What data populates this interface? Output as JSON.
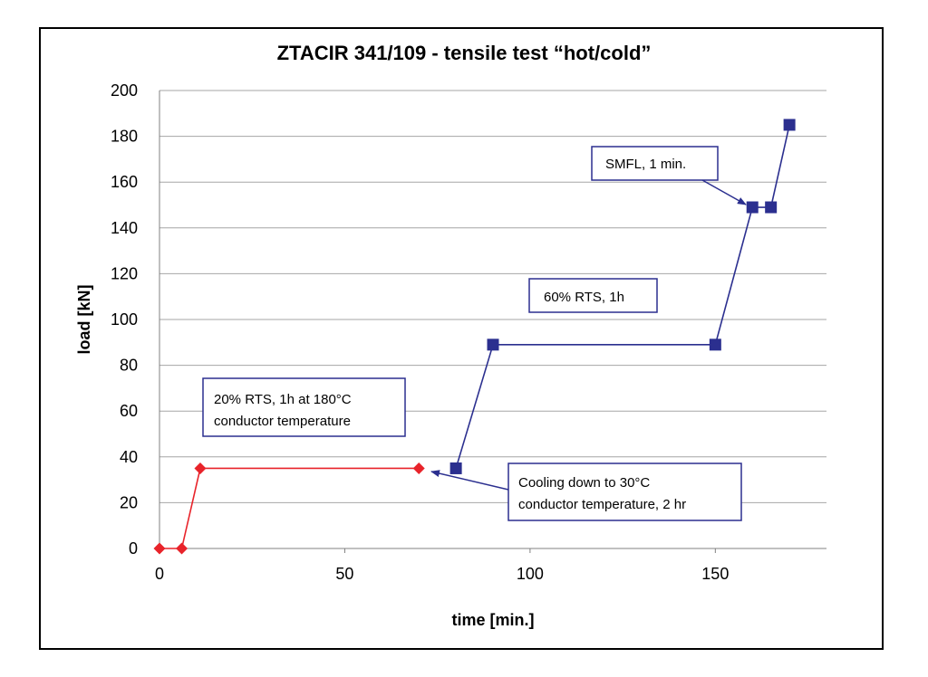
{
  "colors": {
    "series_red": "#e8232a",
    "series_blue": "#2b2f8f",
    "grid": "#a6a6a6",
    "axis": "#808080",
    "annotation_border": "#2b2f8f"
  },
  "chart_data": {
    "type": "line",
    "title": "ZTACIR 341/109 - tensile test “hot/cold”",
    "xlabel": "time [min.]",
    "ylabel": "load [kN]",
    "xlim": [
      0,
      180
    ],
    "ylim": [
      0,
      200
    ],
    "x_ticks": [
      0,
      50,
      100,
      150
    ],
    "y_ticks": [
      0,
      20,
      40,
      60,
      80,
      100,
      120,
      140,
      160,
      180,
      200
    ],
    "grid": true,
    "legend": "none",
    "series": [
      {
        "marker": "diamond",
        "color": "#e8232a",
        "points": [
          [
            0,
            0
          ],
          [
            6,
            0
          ],
          [
            11,
            35
          ],
          [
            70,
            35
          ]
        ]
      },
      {
        "marker": "square",
        "color": "#2b2f8f",
        "points": [
          [
            80,
            35
          ],
          [
            90,
            89
          ],
          [
            150,
            89
          ],
          [
            160,
            149
          ],
          [
            165,
            149
          ],
          [
            170,
            185
          ]
        ]
      }
    ],
    "annotations": [
      {
        "lines": [
          "20% RTS, 1h at 180°C",
          "conductor temperature"
        ]
      },
      {
        "lines": [
          "60% RTS, 1h"
        ]
      },
      {
        "lines": [
          "SMFL, 1 min."
        ]
      },
      {
        "lines": [
          "Cooling down to 30°C",
          "conductor temperature, 2 hr"
        ]
      }
    ]
  }
}
